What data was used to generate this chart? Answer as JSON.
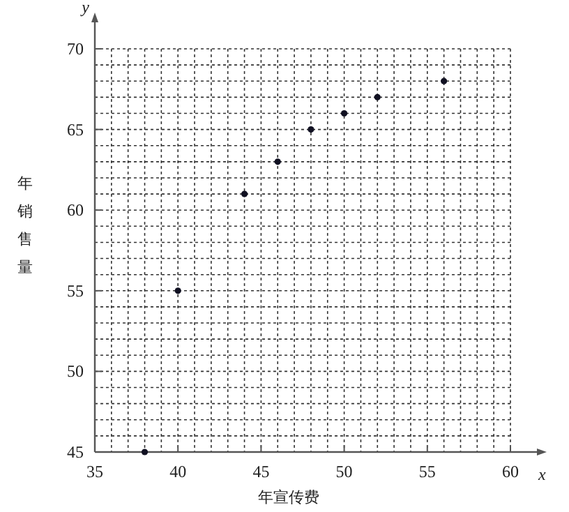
{
  "chart_data": {
    "type": "scatter",
    "xlabel": "年宣传费",
    "ylabel": "年销售量",
    "annotations": [
      "x",
      "y"
    ],
    "x": [
      38,
      40,
      44,
      46,
      48,
      50,
      52,
      56
    ],
    "series": [
      {
        "color": "#111122",
        "values": [
          45,
          55,
          61,
          63,
          65,
          66,
          67,
          68
        ]
      }
    ],
    "xlim": [
      35,
      60
    ],
    "ylim": [
      45,
      70
    ],
    "xticks": [
      35,
      40,
      45,
      50,
      55,
      60
    ],
    "yticks": [
      45,
      50,
      55,
      60,
      65,
      70
    ],
    "grid": true,
    "marker": "circle"
  }
}
